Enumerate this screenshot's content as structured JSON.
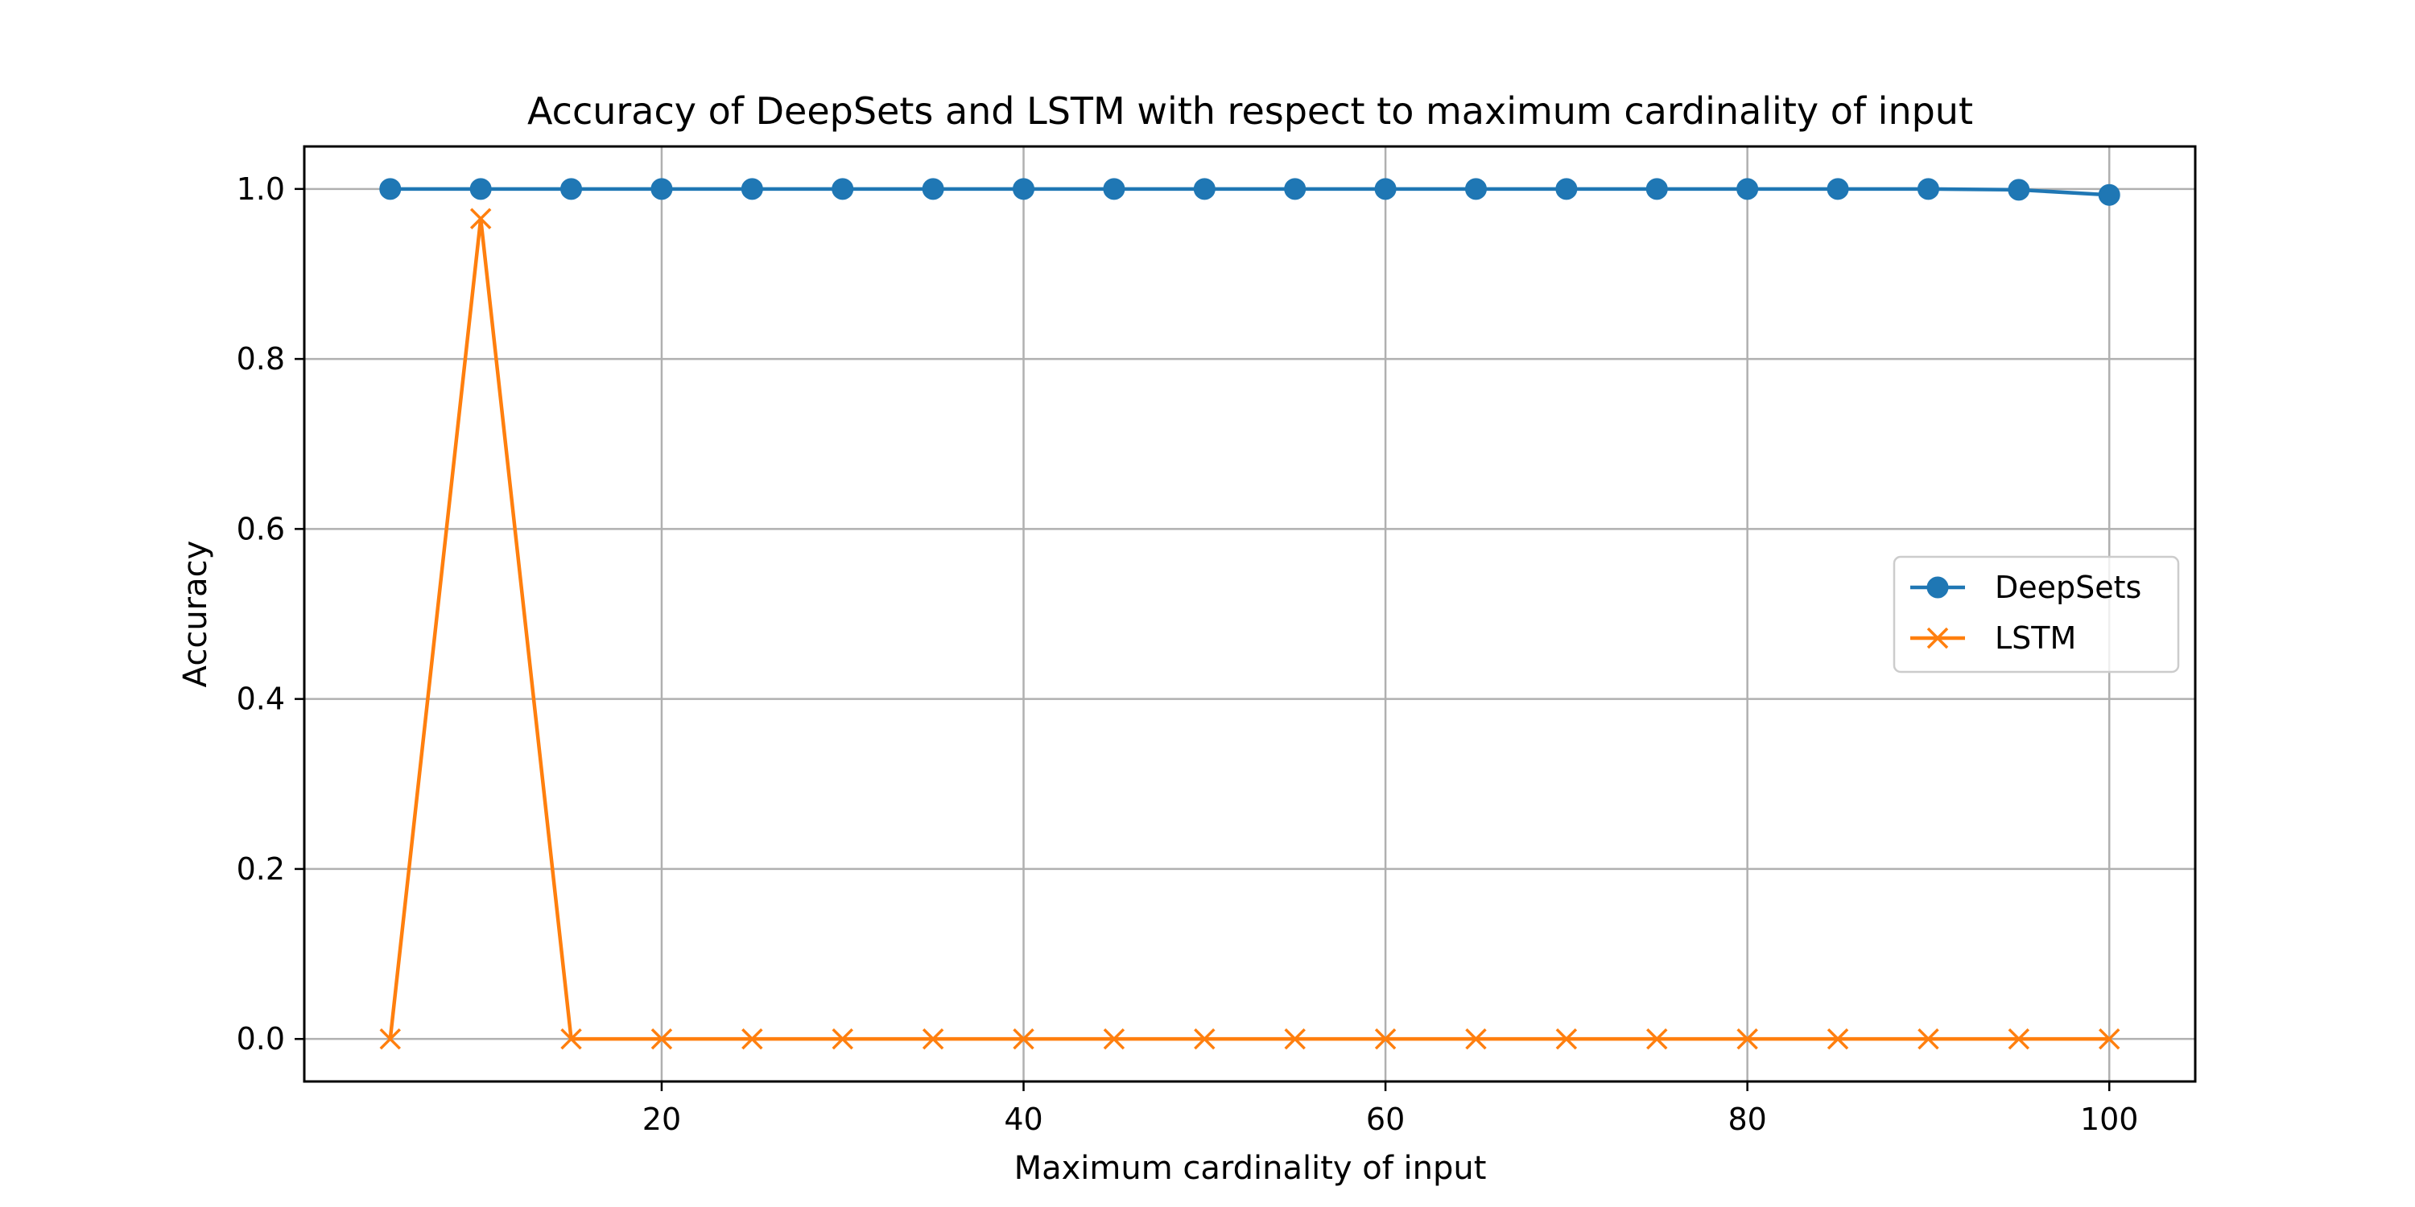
{
  "chart_data": {
    "type": "line",
    "title": "Accuracy of DeepSets and LSTM with respect to maximum cardinality of input",
    "xlabel": "Maximum cardinality of input",
    "ylabel": "Accuracy",
    "xlim": [
      0.25,
      104.75
    ],
    "ylim": [
      -0.05,
      1.05
    ],
    "xticks": [
      20,
      40,
      60,
      80,
      100
    ],
    "yticks": [
      0.0,
      0.2,
      0.4,
      0.6,
      0.8,
      1.0
    ],
    "x": [
      5,
      10,
      15,
      20,
      25,
      30,
      35,
      40,
      45,
      50,
      55,
      60,
      65,
      70,
      75,
      80,
      85,
      90,
      95,
      100
    ],
    "series": [
      {
        "name": "DeepSets",
        "color": "#1f77b4",
        "marker": "circle",
        "values": [
          1.0,
          1.0,
          1.0,
          1.0,
          1.0,
          1.0,
          1.0,
          1.0,
          1.0,
          1.0,
          1.0,
          1.0,
          1.0,
          1.0,
          1.0,
          1.0,
          1.0,
          1.0,
          0.999,
          0.993
        ]
      },
      {
        "name": "LSTM",
        "color": "#ff7f0e",
        "marker": "x",
        "values": [
          0.0,
          0.965,
          0.0,
          0.0,
          0.0,
          0.0,
          0.0,
          0.0,
          0.0,
          0.0,
          0.0,
          0.0,
          0.0,
          0.0,
          0.0,
          0.0,
          0.0,
          0.0,
          0.0,
          0.0
        ]
      }
    ],
    "grid": true,
    "legend_position": "center-right"
  }
}
